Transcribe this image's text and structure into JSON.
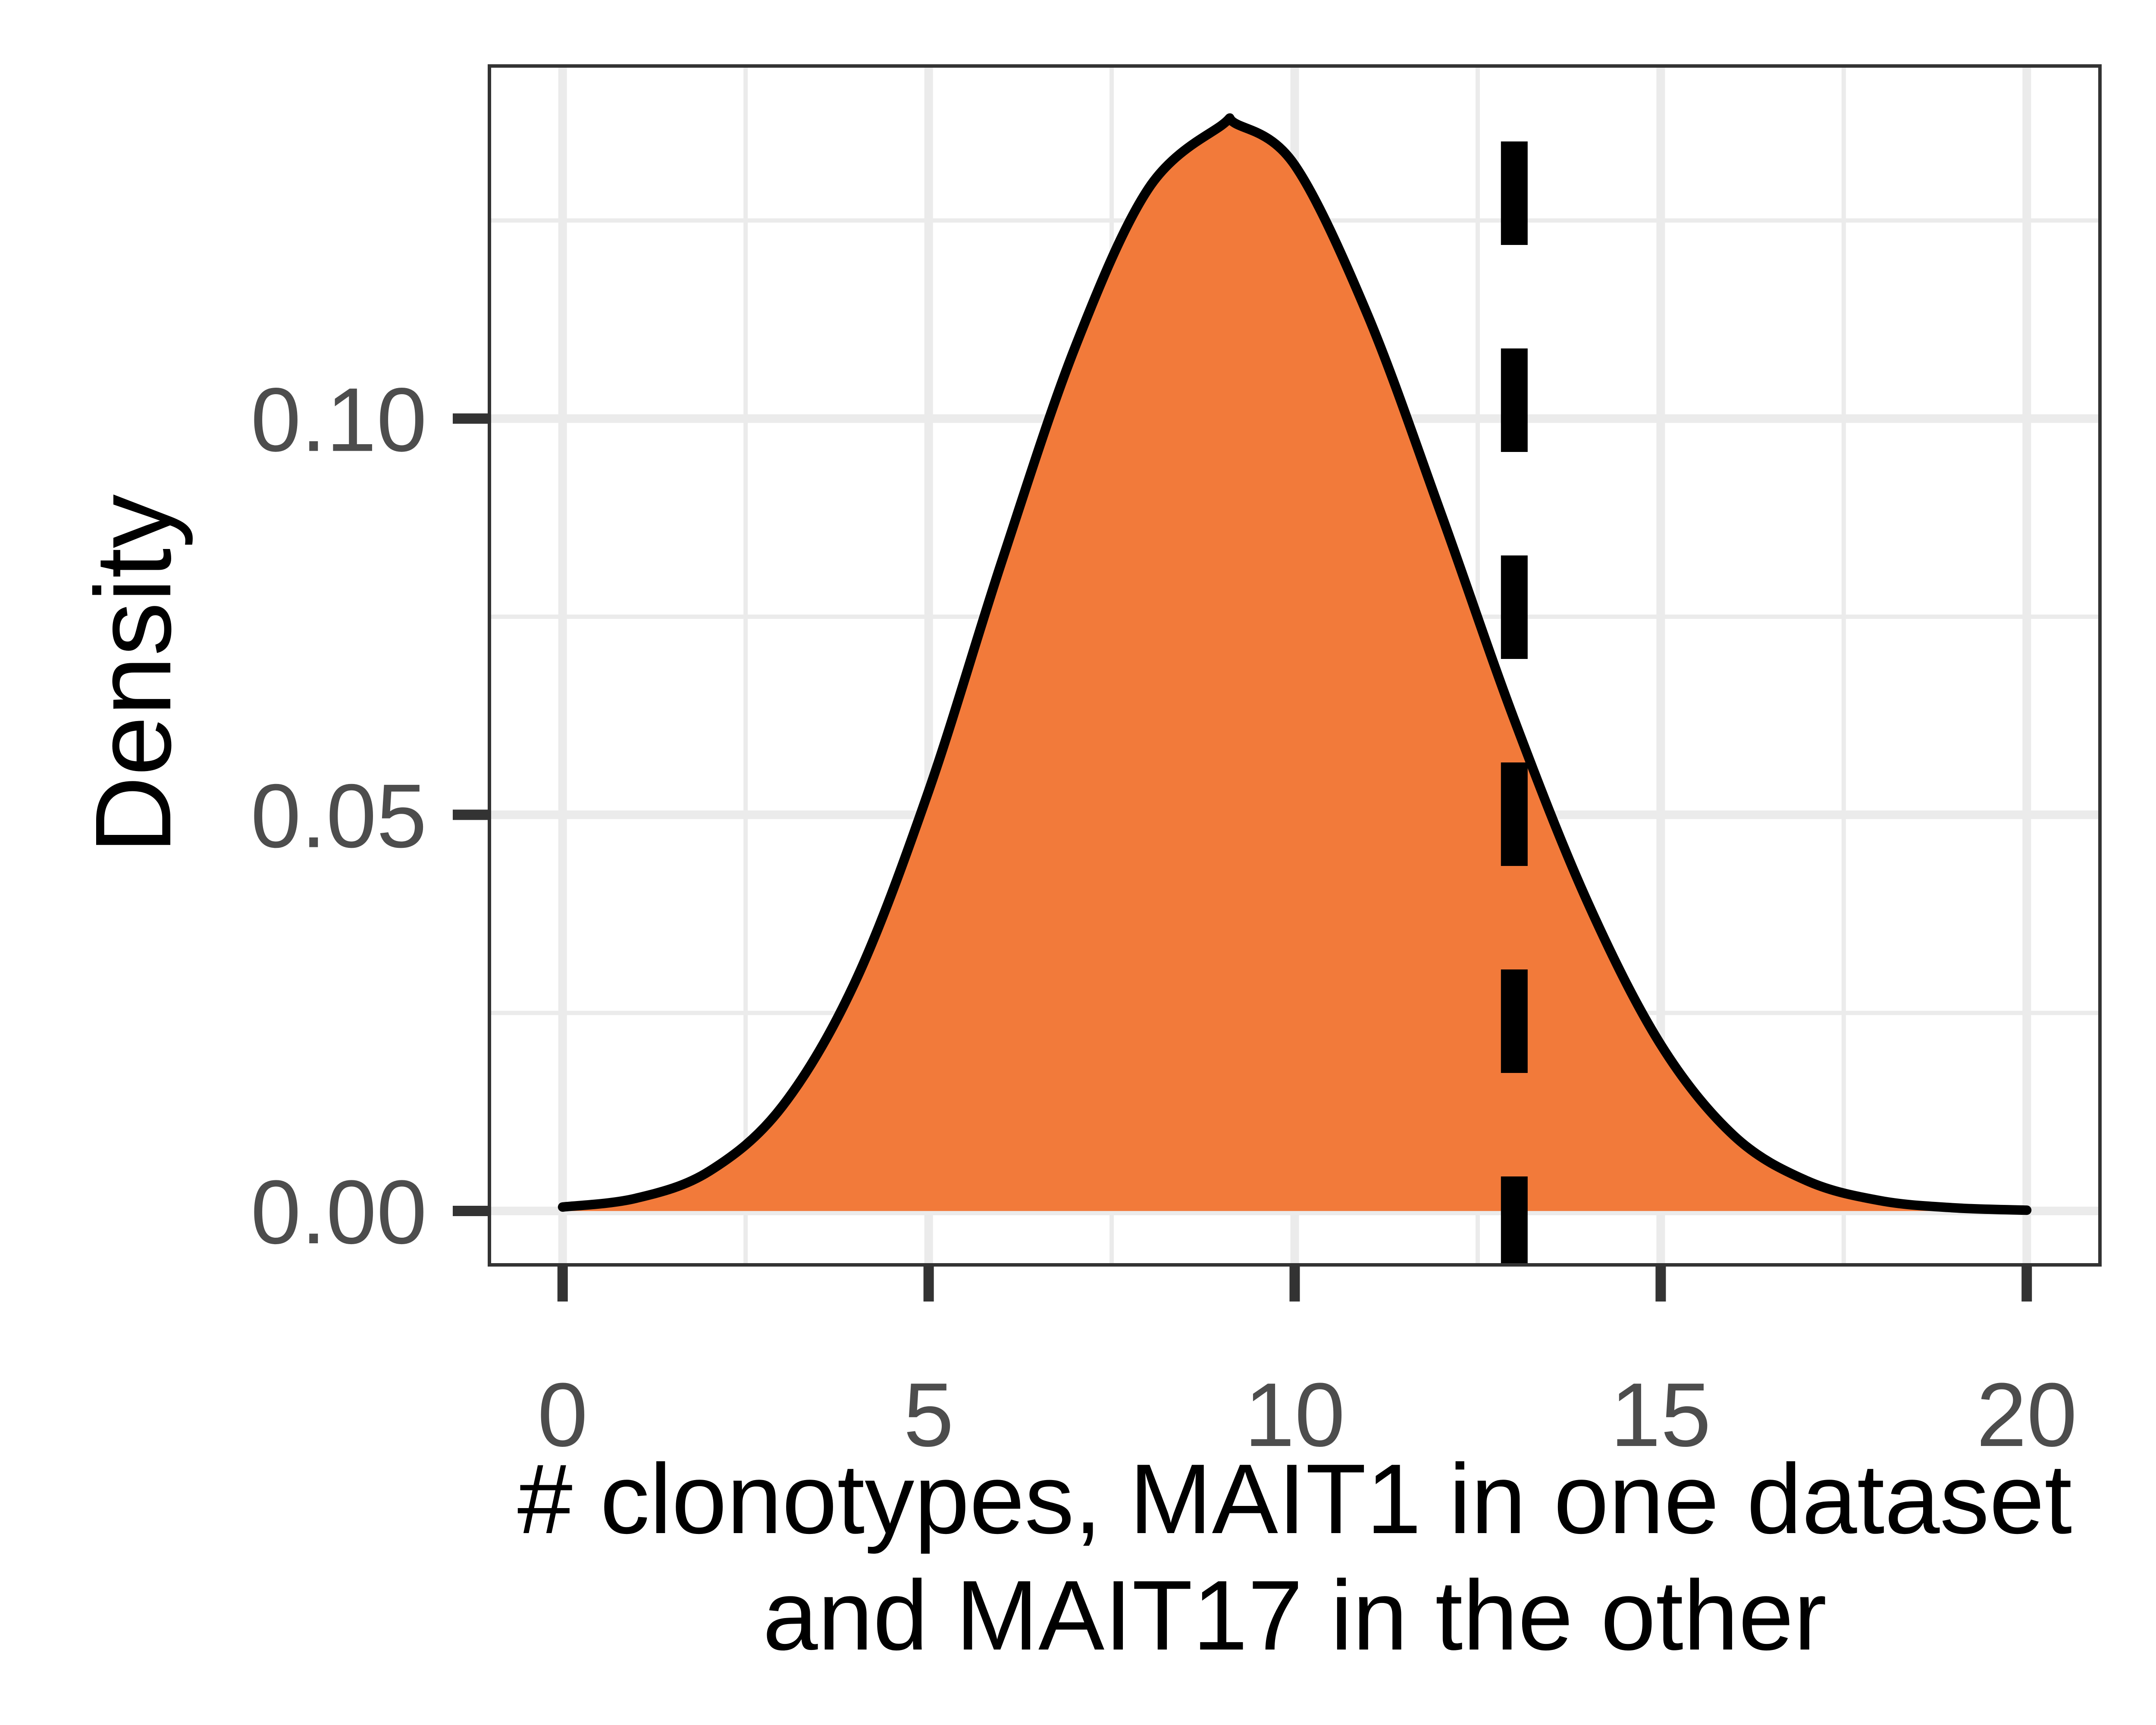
{
  "chart_data": {
    "type": "area",
    "title": "",
    "xlabel_lines": [
      "# clonotypes, MAIT1 in one dataset",
      "and MAIT17 in the other"
    ],
    "ylabel": "Density",
    "xlim": [
      -1,
      21
    ],
    "ylim": [
      -0.0068,
      0.1445
    ],
    "x_ticks": [
      0,
      5,
      10,
      15,
      20
    ],
    "x_tick_labels": [
      "0",
      "5",
      "10",
      "15",
      "20"
    ],
    "x_minor_grid": [
      2.5,
      7.5,
      12.5,
      17.5
    ],
    "y_ticks": [
      0.0,
      0.05,
      0.1
    ],
    "y_tick_labels": [
      "0.00",
      "0.05",
      "0.10"
    ],
    "y_minor_grid": [
      0.025,
      0.075,
      0.125
    ],
    "grid": true,
    "density": {
      "x": [
        0,
        1,
        2,
        3,
        4,
        5,
        6,
        7,
        8,
        9,
        9.2,
        10,
        11,
        12,
        13,
        14,
        15,
        16,
        17,
        18,
        19,
        20
      ],
      "y": [
        0.0005,
        0.0016,
        0.005,
        0.0132,
        0.029,
        0.053,
        0.082,
        0.109,
        0.129,
        0.137,
        0.1372,
        0.132,
        0.113,
        0.088,
        0.062,
        0.039,
        0.021,
        0.0095,
        0.0038,
        0.0013,
        0.0004,
        0.0001
      ]
    },
    "reference_line": {
      "x": 13
    },
    "colors": {
      "fill": "#f27a3a",
      "line": "#000000",
      "reference_line": "#000000",
      "grid": "#ebebeb",
      "panel_border": "#333333",
      "ticks": "#333333",
      "tick_text": "#4d4d4d"
    }
  }
}
